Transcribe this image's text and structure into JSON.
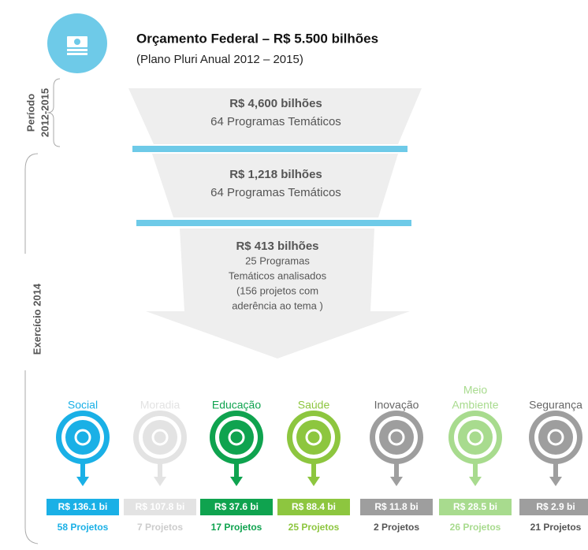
{
  "header": {
    "title": "Orçamento Federal – R$ 5.500 bilhões",
    "subtitle": "(Plano Pluri Anual  2012 – 2015)"
  },
  "periods": [
    {
      "lines": [
        "Período",
        "2012-2015"
      ]
    },
    {
      "lines": [
        "Exercício  2014"
      ]
    }
  ],
  "funnel": [
    {
      "lines": [
        "R$ 4,600 bilhões",
        "64 Programas Temáticos"
      ]
    },
    {
      "lines": [
        "R$ 1,218 bilhões",
        "64 Programas Temáticos"
      ]
    },
    {
      "lines": [
        "R$ 413 bilhões",
        "25 Programas",
        "Temáticos analisados",
        "(156 projetos com",
        "aderência ao tema )"
      ]
    }
  ],
  "categories": [
    {
      "label": [
        "Social"
      ],
      "color": "#1ab0e6",
      "amount": "R$ 136.1 bi",
      "projects": "58 Projetos"
    },
    {
      "label": [
        "Moradia"
      ],
      "color": "#e3e3e3",
      "amount": "R$ 107.8 bi",
      "projects": "7 Projetos"
    },
    {
      "label": [
        "Educação"
      ],
      "color": "#0fa34f",
      "amount": "R$ 37.6 bi",
      "projects": "17 Projetos"
    },
    {
      "label": [
        "Saúde"
      ],
      "color": "#8dc63f",
      "amount": "R$ 88.4 bi",
      "projects": "25 Projetos"
    },
    {
      "label": [
        "Inovação"
      ],
      "color": "#9e9e9e",
      "amount": "R$  11.8 bi",
      "projects": "2 Projetos"
    },
    {
      "label": [
        "Meio",
        "Ambiente"
      ],
      "color": "#a8db8e",
      "amount": "R$ 28.5 bi",
      "projects": "26 Projetos"
    },
    {
      "label": [
        "Segurança"
      ],
      "color": "#9e9e9e",
      "amount": "R$ 2.9 bi",
      "projects": "21 Projetos"
    }
  ]
}
